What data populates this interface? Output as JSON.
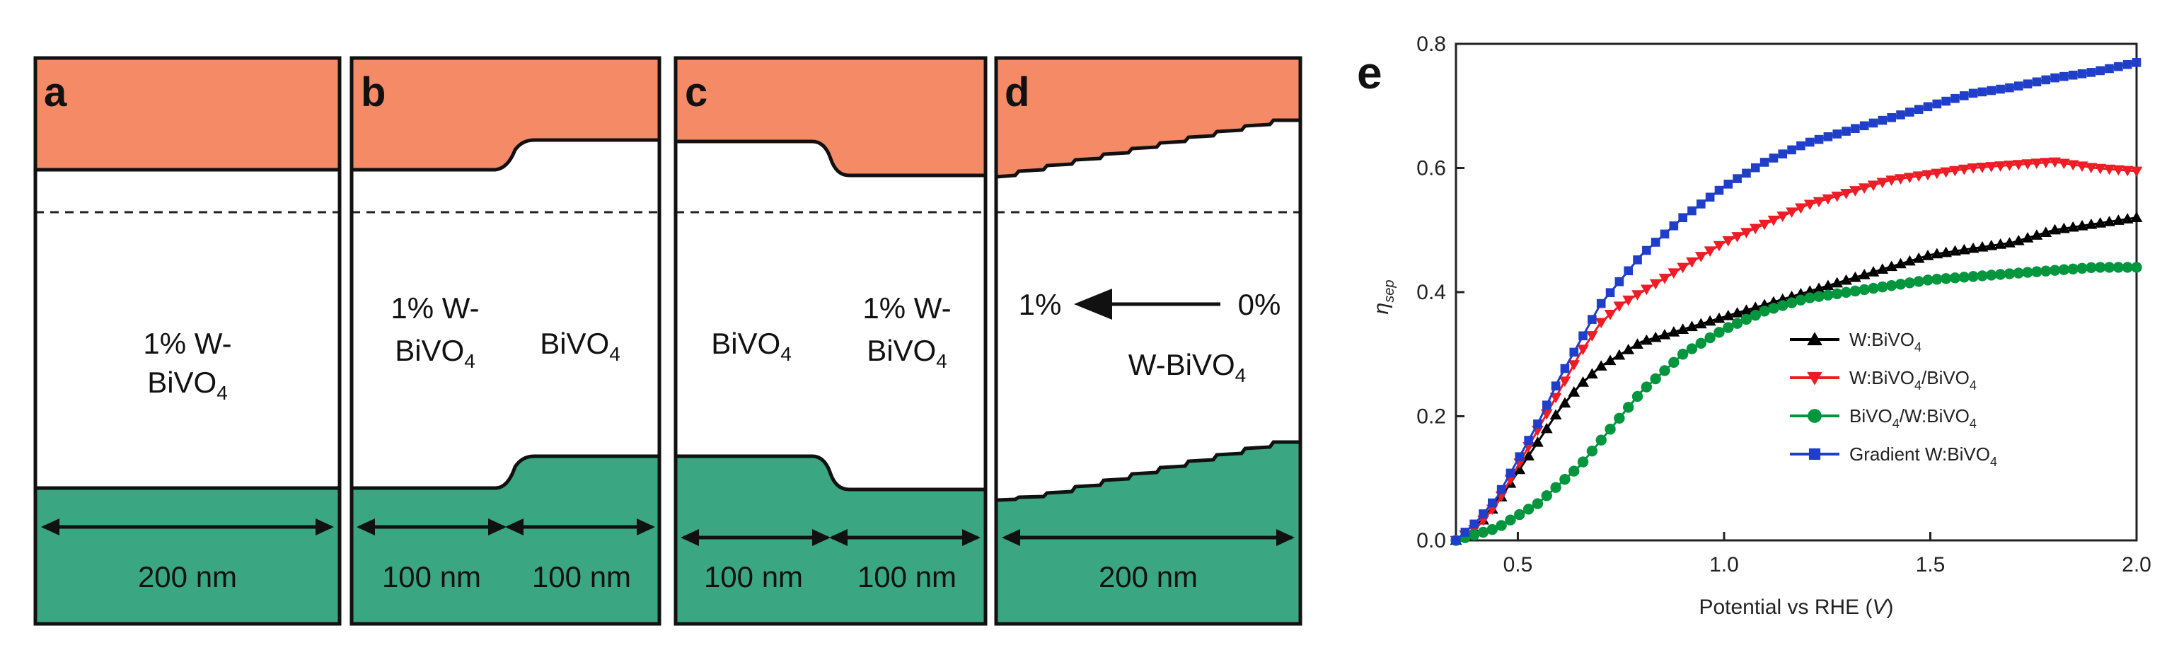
{
  "bands": {
    "colors": {
      "conduction": "#f58a66",
      "valence": "#3aa682",
      "gap": "#ffffff"
    },
    "panels": [
      {
        "letter": "a",
        "label_top": "1% W-",
        "label_bottom": "BiVO",
        "label_sub": "4",
        "width_labels": [
          "200 nm"
        ]
      },
      {
        "letter": "b",
        "label_left_top": "1% W-",
        "label_left_bottom": "BiVO",
        "label_left_sub": "4",
        "label_right": "BiVO",
        "label_right_sub": "4",
        "width_labels": [
          "100 nm",
          "100 nm"
        ]
      },
      {
        "letter": "c",
        "label_left": "BiVO",
        "label_left_sub": "4",
        "label_right_top": "1% W-",
        "label_right_bottom": "BiVO",
        "label_right_sub": "4",
        "width_labels": [
          "100 nm",
          "100 nm"
        ]
      },
      {
        "letter": "d",
        "gradient_from": "1%",
        "gradient_to": "0%",
        "label_bottom": "W-BiVO",
        "label_sub": "4",
        "width_labels": [
          "200 nm"
        ]
      }
    ]
  },
  "chart_data": {
    "panel_letter": "e",
    "type": "scatter",
    "xlabel_main": "Potential vs RHE (",
    "xlabel_var": "V",
    "xlabel_end": ")",
    "ylabel_main": "η",
    "ylabel_sub": "sep",
    "xlim": [
      0.35,
      2.0
    ],
    "ylim": [
      0.0,
      0.8
    ],
    "xticks": [
      0.5,
      1.0,
      1.5,
      2.0
    ],
    "xtick_labels": [
      "0.5",
      "1.0",
      "1.5",
      "2.0"
    ],
    "yticks": [
      0.0,
      0.2,
      0.4,
      0.6,
      0.8
    ],
    "ytick_labels": [
      "0.0",
      "0.2",
      "0.4",
      "0.6",
      "0.8"
    ],
    "legend_position": "lower-right",
    "series": [
      {
        "name": "W:BiVO",
        "name_sub": "4",
        "name_end": "",
        "color": "#000000",
        "marker": "triangle-up",
        "x": [
          0.35,
          0.4,
          0.45,
          0.5,
          0.55,
          0.6,
          0.65,
          0.7,
          0.75,
          0.8,
          0.9,
          1.0,
          1.1,
          1.2,
          1.3,
          1.4,
          1.5,
          1.6,
          1.7,
          1.8,
          1.9,
          2.0
        ],
        "y": [
          0.0,
          0.02,
          0.06,
          0.11,
          0.16,
          0.21,
          0.25,
          0.28,
          0.3,
          0.32,
          0.34,
          0.36,
          0.38,
          0.4,
          0.42,
          0.44,
          0.46,
          0.47,
          0.48,
          0.5,
          0.51,
          0.52
        ]
      },
      {
        "name": "W:BiVO",
        "name_sub": "4",
        "name_end": "/BiVO",
        "name_sub2": "4",
        "color": "#ee1c24",
        "marker": "triangle-down",
        "x": [
          0.35,
          0.4,
          0.45,
          0.5,
          0.55,
          0.6,
          0.65,
          0.7,
          0.75,
          0.8,
          0.9,
          1.0,
          1.1,
          1.2,
          1.3,
          1.4,
          1.5,
          1.6,
          1.7,
          1.8,
          1.9,
          2.0
        ],
        "y": [
          0.0,
          0.02,
          0.06,
          0.12,
          0.18,
          0.24,
          0.3,
          0.35,
          0.38,
          0.4,
          0.44,
          0.48,
          0.51,
          0.54,
          0.56,
          0.58,
          0.59,
          0.6,
          0.605,
          0.61,
          0.6,
          0.595
        ]
      },
      {
        "name": "BiVO",
        "name_sub": "4",
        "name_end": "/W:BiVO",
        "name_sub2": "4",
        "color": "#00963e",
        "marker": "circle",
        "x": [
          0.35,
          0.4,
          0.45,
          0.5,
          0.55,
          0.6,
          0.65,
          0.7,
          0.75,
          0.8,
          0.85,
          0.9,
          1.0,
          1.1,
          1.2,
          1.3,
          1.4,
          1.5,
          1.6,
          1.7,
          1.8,
          1.9,
          2.0
        ],
        "y": [
          0.0,
          0.01,
          0.02,
          0.04,
          0.06,
          0.09,
          0.12,
          0.16,
          0.2,
          0.24,
          0.27,
          0.3,
          0.34,
          0.37,
          0.39,
          0.4,
          0.41,
          0.42,
          0.425,
          0.43,
          0.435,
          0.44,
          0.44
        ]
      },
      {
        "name": "Gradient W:BiVO",
        "name_sub": "4",
        "name_end": "",
        "color": "#1f3ec9",
        "marker": "square",
        "x": [
          0.35,
          0.4,
          0.45,
          0.5,
          0.55,
          0.6,
          0.65,
          0.7,
          0.75,
          0.8,
          0.9,
          1.0,
          1.1,
          1.2,
          1.3,
          1.4,
          1.5,
          1.6,
          1.7,
          1.8,
          1.9,
          2.0
        ],
        "y": [
          0.0,
          0.03,
          0.07,
          0.13,
          0.19,
          0.26,
          0.32,
          0.38,
          0.42,
          0.46,
          0.52,
          0.57,
          0.61,
          0.64,
          0.66,
          0.68,
          0.7,
          0.72,
          0.73,
          0.745,
          0.755,
          0.77
        ]
      }
    ]
  }
}
